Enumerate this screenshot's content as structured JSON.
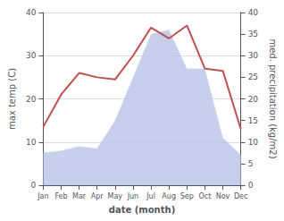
{
  "chart_data": {
    "type": "line",
    "categories": [
      "Jan",
      "Feb",
      "Mar",
      "Apr",
      "May",
      "Jun",
      "Jul",
      "Aug",
      "Sep",
      "Oct",
      "Nov",
      "Dec"
    ],
    "series": [
      {
        "type": "area",
        "color": "#b8c4e8",
        "axis": "y2",
        "values": [
          7.5,
          8.0,
          9.0,
          8.5,
          15.0,
          25.0,
          35.0,
          36.0,
          27.0,
          27.0,
          11.0,
          7.0
        ]
      },
      {
        "type": "line",
        "color": "#c0504d",
        "values": [
          13.5,
          21.0,
          26.0,
          25.0,
          24.5,
          30.0,
          36.5,
          34.0,
          37.0,
          27.0,
          26.5,
          13.0
        ]
      }
    ],
    "xlabel": "date (month)",
    "ylabel": "max temp (C)",
    "y2label": "med. precipitation (kg/m2)",
    "ylim": [
      0,
      40
    ],
    "yticks": [
      0,
      10,
      20,
      30,
      40
    ],
    "y2lim": [
      0,
      40
    ],
    "y2ticks": [
      0,
      5,
      10,
      15,
      20,
      25,
      30,
      35,
      40
    ],
    "grid": true
  }
}
